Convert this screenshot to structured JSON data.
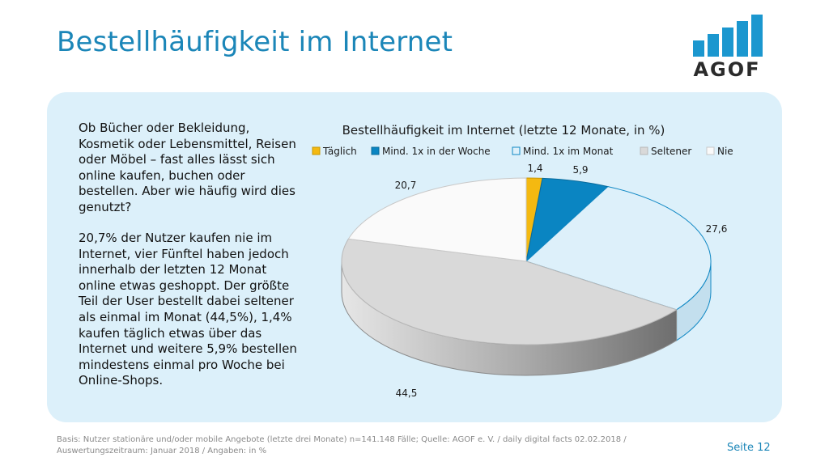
{
  "slide": {
    "title": "Bestellhäufigkeit im Internet",
    "logo_text": "AGOF",
    "intro_text": "Ob Bücher oder Bekleidung, Kosmetik oder Lebensmittel, Reisen oder Möbel – fast alles lässt sich online kaufen, buchen oder bestellen. Aber wie häufig wird dies genutzt?",
    "body_text": "20,7% der Nutzer kaufen nie im Internet, vier Fünftel haben jedoch innerhalb der letzten 12 Monat online etwas geshoppt. Der größte Teil der User bestellt dabei seltener als einmal im Monat (44,5%), 1,4% kaufen täglich etwas über das Internet und weitere 5,9% bestellen mindestens einmal pro Woche bei Online-Shops.",
    "footer_line1": "Basis: Nutzer stationäre und/oder mobile Angebote (letzte drei Monate) n=141.148 Fälle; Quelle: AGOF e. V. / daily digital facts 02.02.2018 /",
    "footer_line2": "Auswertungszeitraum: Januar 2018 / Angaben: in %",
    "page_label": "Seite 12"
  },
  "chart_data": {
    "type": "pie",
    "title": "Bestellhäufigkeit im Internet (letzte 12 Monate, in %)",
    "legend_position": "top",
    "categories": [
      "Täglich",
      "Mind. 1x in der Woche",
      "Mind. 1x im Monat",
      "Seltener",
      "Nie"
    ],
    "values": [
      1.4,
      5.9,
      27.6,
      44.5,
      20.7
    ],
    "value_labels": [
      "1,4",
      "5,9",
      "27,6",
      "44,5",
      "20,7"
    ],
    "colors": [
      "#f4b911",
      "#0a85c2",
      "#ddf0fa",
      "#d9d9d9",
      "#fafafa"
    ]
  },
  "colors": {
    "accent": "#1b86b8",
    "panel": "#dcf0fa"
  }
}
